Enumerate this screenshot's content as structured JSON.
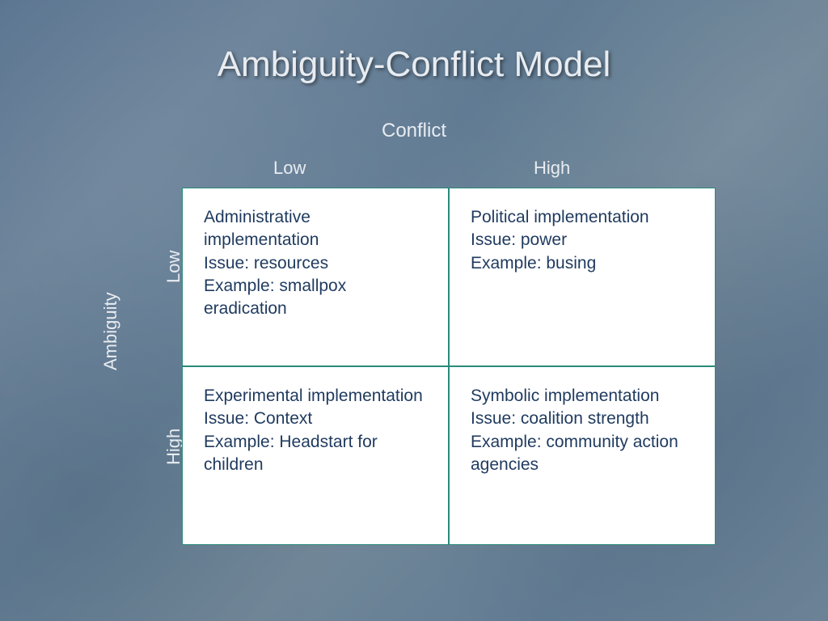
{
  "title": "Ambiguity-Conflict Model",
  "axes": {
    "x": {
      "title": "Conflict",
      "low": "Low",
      "high": "High"
    },
    "y": {
      "title": "Ambiguity",
      "low": "Low",
      "high": "High"
    }
  },
  "colors": {
    "title_text": "#e8ecf1",
    "label_text": "#e8ecf1",
    "cell_bg": "#ffffff",
    "cell_text": "#1f3a5f",
    "cell_border": "#2a8a7a",
    "background_start": "#5a7490",
    "background_end": "#6d8498"
  },
  "typography": {
    "title_fontsize": 44,
    "axis_title_fontsize": 24,
    "axis_label_fontsize": 22,
    "cell_fontsize": 21,
    "font_family": "Verdana"
  },
  "matrix": {
    "type": "quadrant",
    "rows": 2,
    "cols": 2,
    "cells": [
      {
        "pos": "top-left",
        "line1": "Administrative implementation",
        "line2": "Issue: resources",
        "line3": "Example: smallpox eradication"
      },
      {
        "pos": "top-right",
        "line1": "Political implementation",
        "line2": "Issue: power",
        "line3": "Example: busing"
      },
      {
        "pos": "bottom-left",
        "line1": "Experimental implementation",
        "line2": "Issue: Context",
        "line3": "Example: Headstart for children"
      },
      {
        "pos": "bottom-right",
        "line1": "Symbolic implementation",
        "line2": "Issue: coalition strength",
        "line3": "Example: community action agencies"
      }
    ]
  }
}
